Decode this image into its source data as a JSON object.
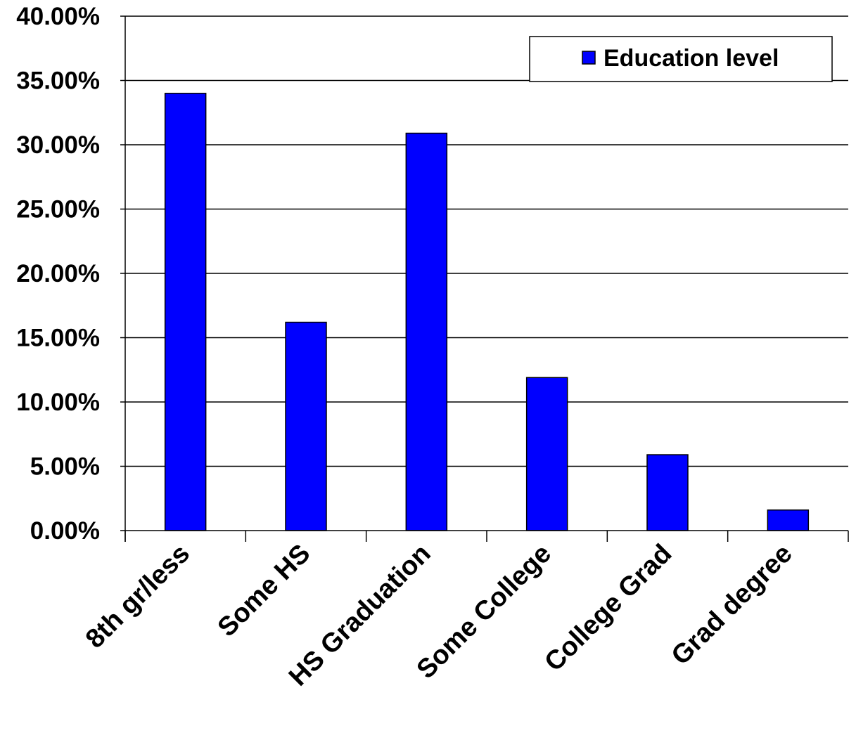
{
  "chart_data": {
    "type": "bar",
    "categories": [
      "8th gr/less",
      "Some HS",
      "HS Graduation",
      "Some College",
      "College Grad",
      "Grad degree"
    ],
    "series": [
      {
        "name": "Education level",
        "values": [
          34.0,
          16.2,
          30.9,
          11.9,
          5.9,
          1.6
        ],
        "color": "#0000FF"
      }
    ],
    "ylim": [
      0,
      40
    ],
    "yticks": [
      0,
      5,
      10,
      15,
      20,
      25,
      30,
      35,
      40
    ],
    "ytick_labels": [
      "0.00%",
      "5.00%",
      "10.00%",
      "15.00%",
      "20.00%",
      "25.00%",
      "30.00%",
      "35.00%",
      "40.00%"
    ],
    "title": "",
    "xlabel": "",
    "ylabel": "",
    "grid": true,
    "legend": {
      "position": "top-right"
    },
    "bar_outline_color": "#000000",
    "grid_color": "#000000"
  }
}
